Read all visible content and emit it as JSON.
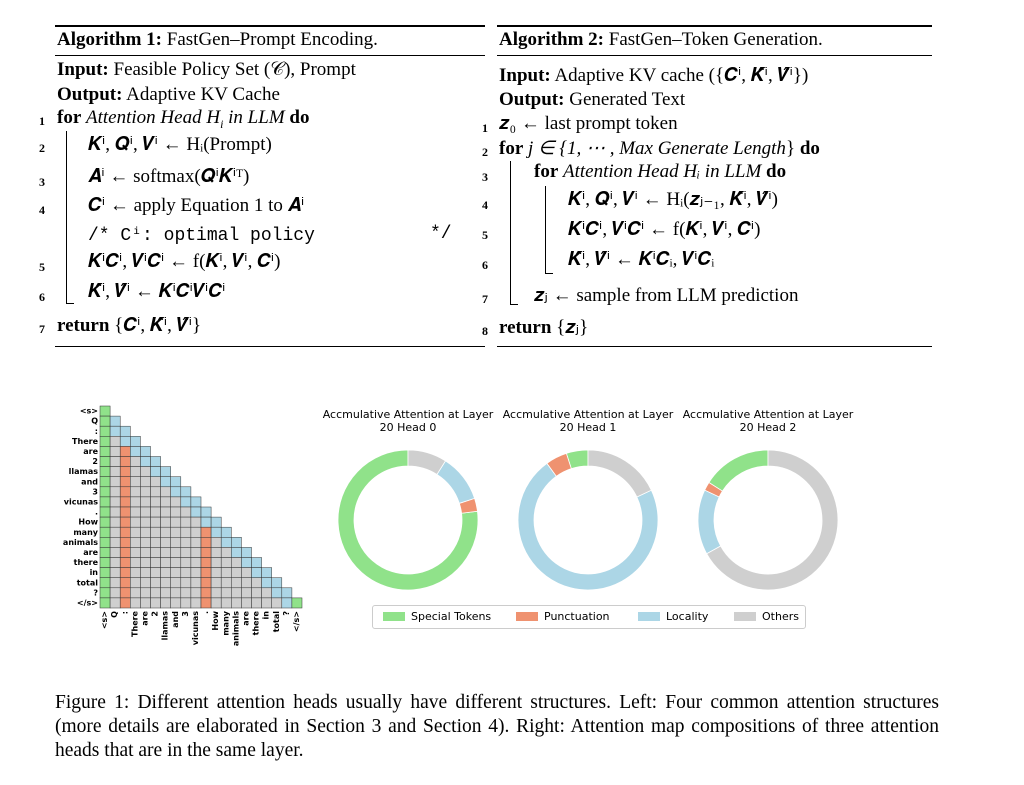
{
  "alg1": {
    "title_bold": "Algorithm 1:",
    "title_rest": "FastGen–Prompt Encoding.",
    "input_kw": "Input:",
    "input_text": "Feasible Policy Set (𝒞), Prompt",
    "output_kw": "Output:",
    "output_text": "Adaptive KV Cache",
    "l1_kw": "for",
    "l1_text": "Attention Head",
    "l1_var": "H",
    "l1_sub": "i",
    "l1_text2": "in LLM",
    "l1_do": "do",
    "l2": "𝑲ⁱ, 𝑸ⁱ, 𝑽ⁱ ← Hᵢ(Prompt)",
    "l3": "𝑨ⁱ ← softmax(𝑸ⁱ𝑲ⁱᵀ)",
    "l4": "𝑪ⁱ ← apply Equation 1 to 𝑨ⁱ",
    "comment": "/* Cⁱ:  optimal policy",
    "comment_end": "*/",
    "l5": "𝑲ⁱ𝑪ⁱ, 𝑽ⁱ𝑪ⁱ ← f(𝑲ⁱ, 𝑽ⁱ, 𝑪ⁱ)",
    "l6": "𝑲̂ⁱ, 𝑽̂ⁱ ← 𝑲ⁱ𝑪ⁱ𝑽ⁱ𝑪ⁱ",
    "l7_kw": "return",
    "l7": "{𝑪ⁱ, 𝑲̂ⁱ, 𝑽̂ⁱ}",
    "nums": [
      "1",
      "2",
      "3",
      "4",
      "5",
      "6",
      "7"
    ]
  },
  "alg2": {
    "title_bold": "Algorithm 2:",
    "title_rest": "FastGen–Token Generation.",
    "input_kw": "Input:",
    "input_text": "Adaptive KV cache ({𝑪ⁱ, 𝑲̂ⁱ, 𝑽̂ⁱ})",
    "output_kw": "Output:",
    "output_text": "Generated Text",
    "l1": "𝒛₀ ← last prompt token",
    "l2_kw": "for",
    "l2_text": "j ∈ {1, ⋯ ,",
    "l2_it": "Max Generate Length",
    "l2_end": "}",
    "l2_do": "do",
    "l3_kw": "for",
    "l3_text": "Attention Head Hᵢ in LLM",
    "l3_do": "do",
    "l4": "𝑲ⁱ, 𝑸ⁱ, 𝑽ⁱ ← Hᵢ(𝒛ⱼ₋₁, 𝑲̂ⁱ, 𝑽̂ⁱ)",
    "l5": "𝑲ⁱ𝑪ⁱ, 𝑽ⁱ𝑪ⁱ ← f(𝑲ⁱ, 𝑽ⁱ, 𝑪ⁱ)",
    "l6": "𝑲̂ⁱ, 𝑽̂ⁱ ← 𝑲ⁱ𝑪ᵢ, 𝑽ⁱ𝑪ᵢ",
    "l7": "𝒛ⱼ ← sample from LLM prediction",
    "l8_kw": "return",
    "l8": "{𝒛ⱼ}",
    "nums": [
      "1",
      "2",
      "3",
      "4",
      "5",
      "6",
      "7",
      "8"
    ]
  },
  "heatmap": {
    "tokens": [
      "<s>",
      "Q",
      ":",
      "There",
      "are",
      "2",
      "llamas",
      "and",
      "3",
      "vicunas",
      ".",
      "How",
      "many",
      "animals",
      "are",
      "there",
      "in",
      "total",
      "?",
      "</s>"
    ],
    "punct_columns": [
      2,
      10,
      18
    ],
    "colors": {
      "special": "#90e28a",
      "punct": "#ef9270",
      "locality": "#acd6e6",
      "others": "#cfcfcf"
    }
  },
  "donuts": [
    {
      "title": "Accmulative Attention at Layer 20 Head 0",
      "fractions": {
        "special": 0.77,
        "punct": 0.03,
        "locality": 0.11,
        "others": 0.09
      }
    },
    {
      "title": "Accmulative Attention at Layer 20 Head 1",
      "fractions": {
        "special": 0.05,
        "punct": 0.05,
        "locality": 0.72,
        "others": 0.18
      }
    },
    {
      "title": "Accmulative Attention at Layer 20 Head 2",
      "fractions": {
        "special": 0.16,
        "punct": 0.02,
        "locality": 0.15,
        "others": 0.67
      }
    }
  ],
  "legend": {
    "special": "Special Tokens",
    "punct": "Punctuation",
    "locality": "Locality",
    "others": "Others"
  },
  "caption": "Figure 1: Different attention heads usually have different structures. Left: Four common attention structures (more details are elaborated in Section 3 and Section 4). Right: Attention map compositions of three attention heads that are in the same layer."
}
